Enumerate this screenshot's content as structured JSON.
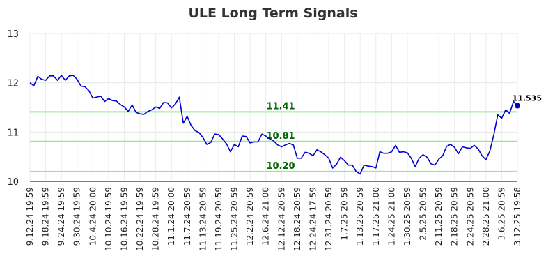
{
  "chart_data": {
    "type": "line",
    "title": "ULE Long Term Signals",
    "xlabel": "",
    "ylabel": "",
    "ylim": [
      10,
      13
    ],
    "yticks": [
      "10",
      "11",
      "12",
      "13"
    ],
    "xticks": [
      "9.12.24 19:59",
      "9.18.24 19:59",
      "9.24.24 19:59",
      "9.30.24 19:59",
      "10.4.24 20:00",
      "10.10.24 19:59",
      "10.16.24 19:59",
      "10.22.24 19:59",
      "10.28.24 19:59",
      "11.1.24 20:00",
      "11.7.24 20:59",
      "11.13.24 20:59",
      "11.19.24 20:59",
      "11.25.24 20:59",
      "12.2.24 20:59",
      "12.6.24 21:00",
      "12.12.24 20:59",
      "12.18.24 20:59",
      "12.24.24 17:59",
      "12.31.24 20:59",
      "1.7.25 20:59",
      "1.13.25 20:59",
      "1.17.25 21:00",
      "1.24.25 21:00",
      "1.30.25 20:59",
      "2.5.25 20:59",
      "2.11.25 20:59",
      "2.18.25 20:59",
      "2.24.25 20:59",
      "2.28.25 21:00",
      "3.6.25 20:59",
      "3.12.25 19:58"
    ],
    "grid": true,
    "series": [
      {
        "name": "",
        "color": "#0000cc",
        "values": [
          12.0,
          11.94,
          12.13,
          12.07,
          12.05,
          12.14,
          12.14,
          12.05,
          12.15,
          12.05,
          12.14,
          12.15,
          12.07,
          11.93,
          11.92,
          11.84,
          11.69,
          11.71,
          11.73,
          11.62,
          11.68,
          11.64,
          11.63,
          11.56,
          11.51,
          11.42,
          11.55,
          11.4,
          11.37,
          11.36,
          11.42,
          11.45,
          11.51,
          11.48,
          11.6,
          11.59,
          11.49,
          11.57,
          11.71,
          11.18,
          11.32,
          11.13,
          11.03,
          10.99,
          10.89,
          10.75,
          10.79,
          10.96,
          10.95,
          10.86,
          10.76,
          10.6,
          10.75,
          10.7,
          10.92,
          10.91,
          10.78,
          10.8,
          10.8,
          10.96,
          10.92,
          10.86,
          10.82,
          10.74,
          10.7,
          10.74,
          10.77,
          10.74,
          10.47,
          10.47,
          10.59,
          10.57,
          10.52,
          10.64,
          10.6,
          10.54,
          10.47,
          10.27,
          10.35,
          10.49,
          10.42,
          10.33,
          10.33,
          10.2,
          10.15,
          10.33,
          10.31,
          10.3,
          10.27,
          10.6,
          10.57,
          10.57,
          10.6,
          10.73,
          10.59,
          10.6,
          10.58,
          10.47,
          10.3,
          10.47,
          10.54,
          10.49,
          10.36,
          10.33,
          10.45,
          10.52,
          10.71,
          10.75,
          10.69,
          10.56,
          10.7,
          10.68,
          10.67,
          10.73,
          10.66,
          10.52,
          10.44,
          10.62,
          10.95,
          11.35,
          11.28,
          11.45,
          11.38,
          11.62,
          11.535
        ]
      }
    ],
    "reference_lines": [
      {
        "value": 11.41,
        "label": "11.41",
        "color": "#90ee90",
        "label_color": "#006400"
      },
      {
        "value": 10.81,
        "label": "10.81",
        "color": "#90ee90",
        "label_color": "#006400"
      },
      {
        "value": 10.2,
        "label": "10.20",
        "color": "#90ee90",
        "label_color": "#006400"
      }
    ],
    "last_value_label": "11.535"
  }
}
